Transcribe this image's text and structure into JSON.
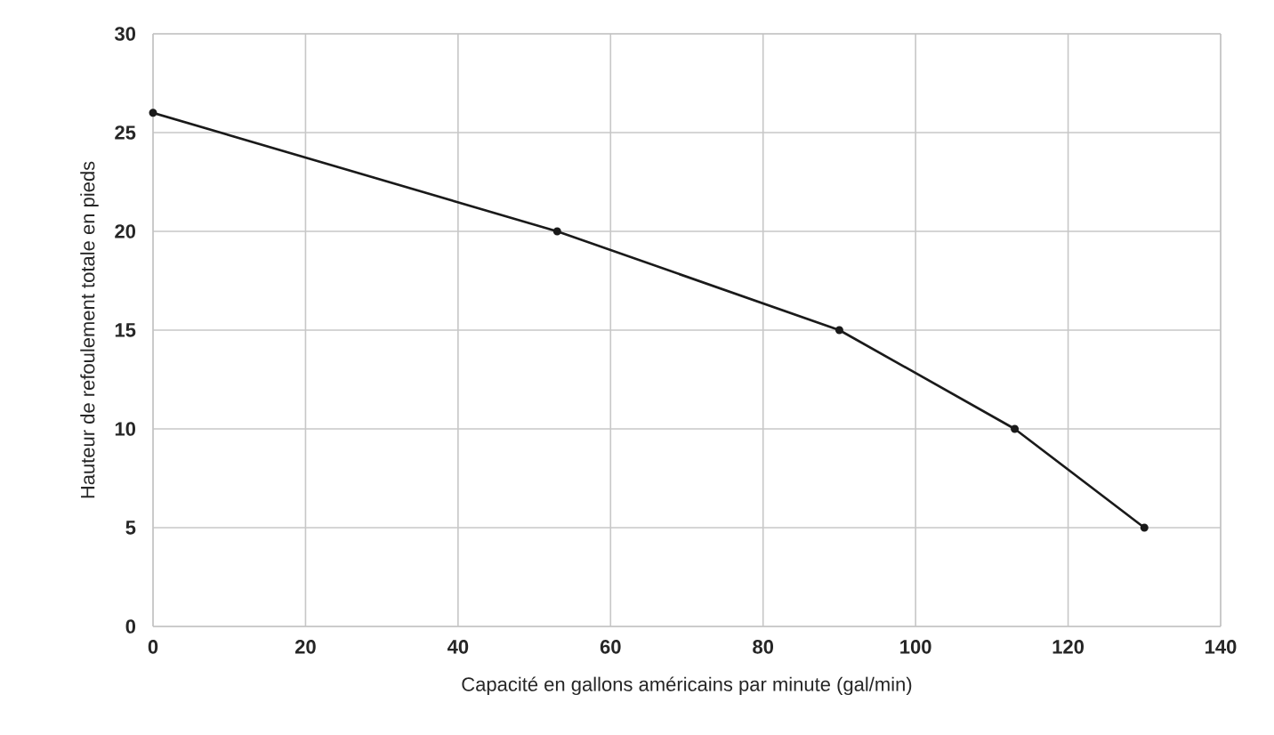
{
  "chart_data": {
    "type": "line",
    "xlabel": "Capacité en gallons américains par minute (gal/min)",
    "ylabel": "Hauteur de refoulement totale en pieds",
    "x": [
      0,
      53,
      90,
      113,
      130
    ],
    "series": [
      {
        "color": "#1a1a1a",
        "values": [
          26,
          20,
          15,
          10,
          5
        ]
      }
    ],
    "xlim": [
      0,
      140
    ],
    "xticks": [
      0,
      20,
      40,
      60,
      80,
      100,
      120,
      140
    ],
    "ylim": [
      0,
      30
    ],
    "yticks": [
      0,
      5,
      10,
      15,
      20,
      25,
      30
    ],
    "grid": true,
    "marker": "circle",
    "line_style": "solid"
  }
}
